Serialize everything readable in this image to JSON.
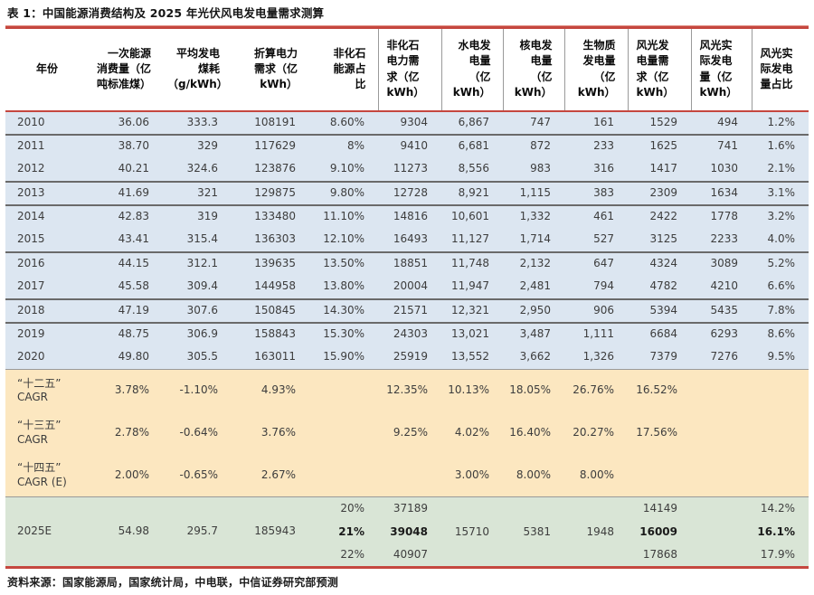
{
  "title": "表 1：中国能源消费结构及 2025 年光伏风电发电量需求测算",
  "source": "资料来源：国家能源局，国家统计局，中电联，中信证券研究部预测",
  "colors": {
    "rule_red": "#c5473f",
    "band_blue": "#dce6f1",
    "band_yellow": "#fce7c0",
    "band_green": "#d9e5d6",
    "separator_gray": "#6a6a6a"
  },
  "table": {
    "headers": [
      "年份",
      "一次能源\n消费量（亿\n吨标准煤）",
      "平均发电\n煤耗\n（g/kWh）",
      "折算电力\n需求（亿\nkWh）",
      "非化石\n能源占\n比",
      "非化石\n电力需\n求（亿\nkWh）",
      "水电发\n电量\n（亿\nkWh）",
      "核电发\n电量\n（亿\nkWh）",
      "生物质\n发电量\n（亿\nkWh）",
      "风光发\n电量需\n求（亿\nkWh）",
      "风光实\n际发电\n量（亿\nkWh）",
      "风光实\n际发电\n量占比"
    ],
    "annual_rows": [
      {
        "year": "2010",
        "values": [
          "36.06",
          "333.3",
          "108191",
          "8.60%",
          "9304",
          "6,867",
          "747",
          "161",
          "1529",
          "494",
          "1.2%"
        ]
      },
      {
        "year": "2011",
        "values": [
          "38.70",
          "329",
          "117629",
          "8%",
          "9410",
          "6,681",
          "872",
          "233",
          "1625",
          "741",
          "1.6%"
        ]
      },
      {
        "year": "2012",
        "values": [
          "40.21",
          "324.6",
          "123876",
          "9.10%",
          "11273",
          "8,556",
          "983",
          "316",
          "1417",
          "1030",
          "2.1%"
        ]
      },
      {
        "year": "2013",
        "values": [
          "41.69",
          "321",
          "129875",
          "9.80%",
          "12728",
          "8,921",
          "1,115",
          "383",
          "2309",
          "1634",
          "3.1%"
        ]
      },
      {
        "year": "2014",
        "values": [
          "42.83",
          "319",
          "133480",
          "11.10%",
          "14816",
          "10,601",
          "1,332",
          "461",
          "2422",
          "1778",
          "3.2%"
        ]
      },
      {
        "year": "2015",
        "values": [
          "43.41",
          "315.4",
          "136303",
          "12.10%",
          "16493",
          "11,127",
          "1,714",
          "527",
          "3125",
          "2233",
          "4.0%"
        ]
      },
      {
        "year": "2016",
        "values": [
          "44.15",
          "312.1",
          "139635",
          "13.50%",
          "18851",
          "11,748",
          "2,132",
          "647",
          "4324",
          "3089",
          "5.2%"
        ]
      },
      {
        "year": "2017",
        "values": [
          "45.58",
          "309.4",
          "144958",
          "13.80%",
          "20004",
          "11,947",
          "2,481",
          "794",
          "4782",
          "4210",
          "6.6%"
        ]
      },
      {
        "year": "2018",
        "values": [
          "47.19",
          "307.6",
          "150845",
          "14.30%",
          "21571",
          "12,321",
          "2,950",
          "906",
          "5394",
          "5435",
          "7.8%"
        ]
      },
      {
        "year": "2019",
        "values": [
          "48.75",
          "306.9",
          "158843",
          "15.30%",
          "24303",
          "13,021",
          "3,487",
          "1,111",
          "6684",
          "6293",
          "8.6%"
        ]
      },
      {
        "year": "2020",
        "values": [
          "49.80",
          "305.5",
          "163011",
          "15.90%",
          "25919",
          "13,552",
          "3,662",
          "1,326",
          "7379",
          "7276",
          "9.5%"
        ]
      }
    ],
    "cagr_rows": [
      {
        "label": "“十二五”\nCAGR",
        "values": [
          "3.78%",
          "-1.10%",
          "4.93%",
          "",
          "12.35%",
          "10.13%",
          "18.05%",
          "26.76%",
          "16.52%",
          "",
          ""
        ]
      },
      {
        "label": "“十三五”\nCAGR",
        "values": [
          "2.78%",
          "-0.64%",
          "3.76%",
          "",
          "9.25%",
          "4.02%",
          "16.40%",
          "20.27%",
          "17.56%",
          "",
          ""
        ]
      },
      {
        "label": "“十四五”\nCAGR (E)",
        "values": [
          "2.00%",
          "-0.65%",
          "2.67%",
          "",
          "",
          "3.00%",
          "8.00%",
          "8.00%",
          "",
          "",
          ""
        ]
      }
    ],
    "forecast": {
      "year": "2025E",
      "primary_energy": "54.98",
      "coal_rate": "295.7",
      "power_demand": "185943",
      "scenarios": [
        {
          "share": "20%",
          "nonfossil": "37189",
          "hydro": "",
          "nuclear": "",
          "biomass": "",
          "wind_solar_demand": "14149",
          "ratio": "14.2%",
          "bold": false
        },
        {
          "share": "21%",
          "nonfossil": "39048",
          "hydro": "15710",
          "nuclear": "5381",
          "biomass": "1948",
          "wind_solar_demand": "16009",
          "ratio": "16.1%",
          "bold": true
        },
        {
          "share": "22%",
          "nonfossil": "40907",
          "hydro": "",
          "nuclear": "",
          "biomass": "",
          "wind_solar_demand": "17868",
          "ratio": "17.9%",
          "bold": false
        }
      ]
    }
  }
}
